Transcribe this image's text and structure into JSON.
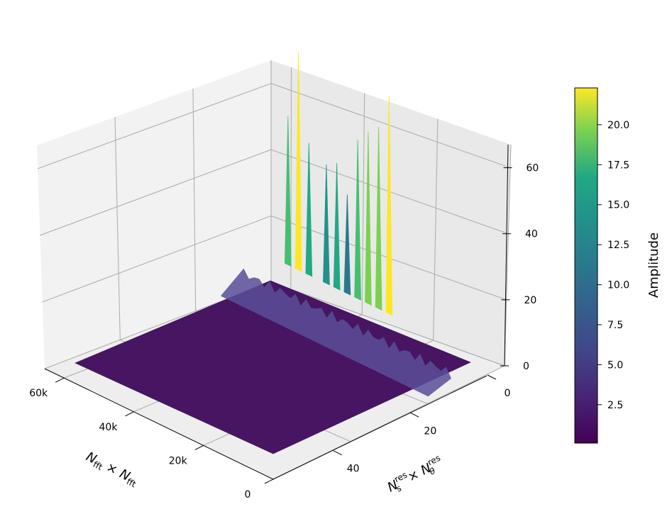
{
  "chart_data": {
    "type": "surface3d",
    "title": "",
    "x_axis": {
      "label_main": "N",
      "label_sub": "fft",
      "label_sep": "×",
      "ticks": [
        "0",
        "20k",
        "40k",
        "60k"
      ],
      "tick_values": [
        0,
        20000,
        40000,
        60000
      ],
      "range": [
        0,
        65536
      ]
    },
    "y_axis": {
      "label_main_1": "N",
      "label_sup_1": "res",
      "label_sub_1": "s",
      "label_sep": "×",
      "label_main_2": "N",
      "label_sup_2": "res",
      "label_sub_2": "θ",
      "ticks": [
        "0",
        "20",
        "40"
      ],
      "tick_values": [
        0,
        20,
        40
      ],
      "range": [
        0,
        60
      ]
    },
    "z_axis": {
      "ticks": [
        "0",
        "20",
        "40",
        "60"
      ],
      "tick_values": [
        0,
        20,
        40,
        60
      ],
      "range": [
        0,
        67
      ]
    },
    "colorbar": {
      "label": "Amplitude",
      "ticks": [
        "2.5",
        "5.0",
        "7.5",
        "10.0",
        "12.5",
        "15.0",
        "17.5",
        "20.0"
      ],
      "tick_values": [
        2.5,
        5.0,
        7.5,
        10.0,
        12.5,
        15.0,
        17.5,
        20.0
      ],
      "range": [
        0.1,
        22.3
      ],
      "colormap": "viridis"
    },
    "ridge": {
      "description_axis_y_value": 0,
      "peaks": [
        {
          "x": 32000,
          "y": 1,
          "z": 66
        },
        {
          "x": 35000,
          "y": 1,
          "z": 55
        },
        {
          "x": 38000,
          "y": 1,
          "z": 52
        },
        {
          "x": 41000,
          "y": 1,
          "z": 48
        },
        {
          "x": 44000,
          "y": 1,
          "z": 30
        },
        {
          "x": 47000,
          "y": 1,
          "z": 38
        },
        {
          "x": 50000,
          "y": 1,
          "z": 36
        },
        {
          "x": 55000,
          "y": 1,
          "z": 40
        },
        {
          "x": 58000,
          "y": 1,
          "z": 66
        },
        {
          "x": 61000,
          "y": 1,
          "z": 45
        }
      ]
    }
  }
}
